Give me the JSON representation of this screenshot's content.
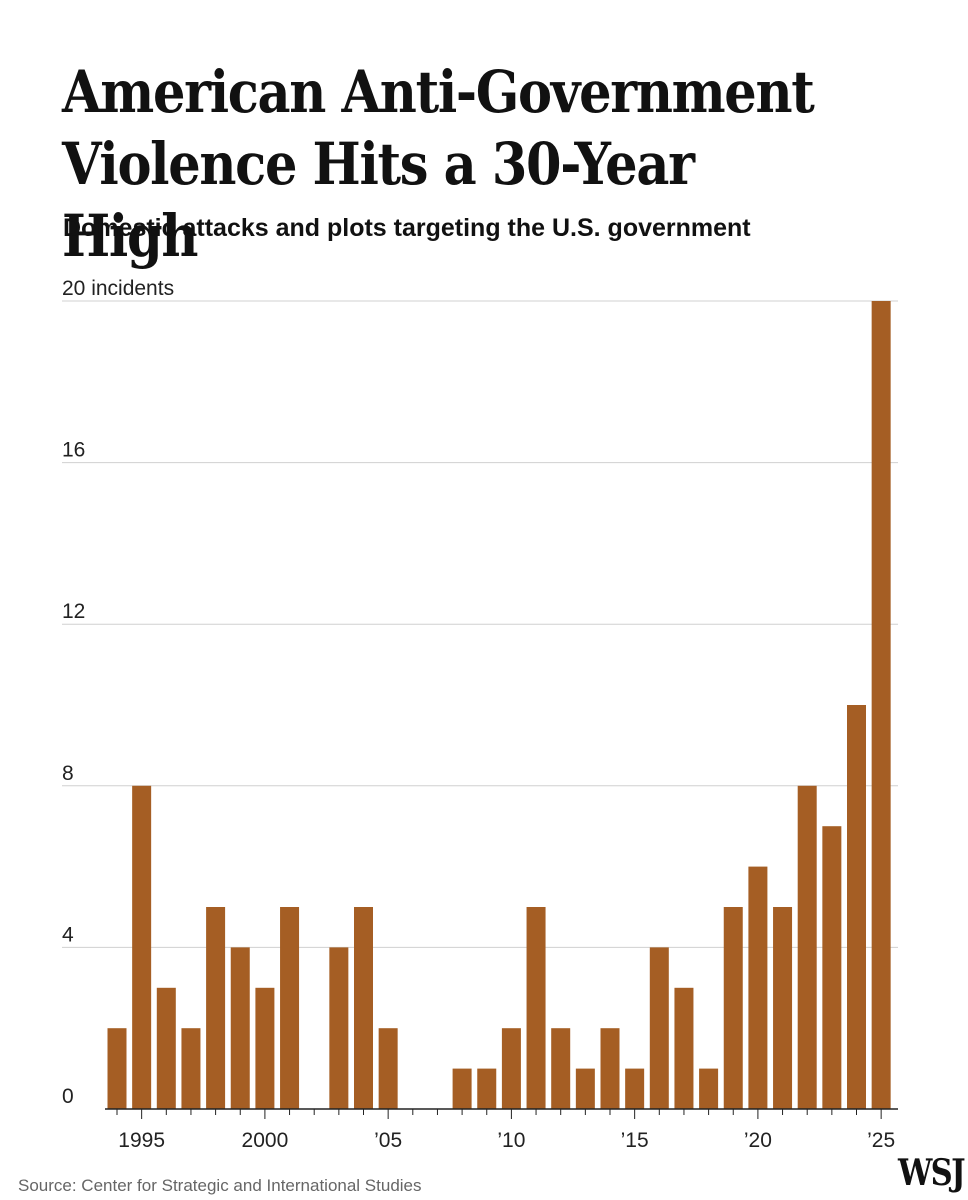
{
  "title": "American Anti-Government Violence Hits a 30-Year High",
  "subtitle": "Domestic attacks and plots targeting the U.S. government",
  "source": "Source: Center for Strategic and International Studies",
  "logo": "WSJ",
  "colors": {
    "bar": "#A55E24",
    "grid": "#d0d0d0",
    "axis": "#222222"
  },
  "chart_data": {
    "type": "bar",
    "title": "American Anti-Government Violence Hits a 30-Year High",
    "subtitle": "Domestic attacks and plots targeting the U.S. government",
    "ylabel": "",
    "xlabel": "",
    "ylim": [
      0,
      20
    ],
    "grid": true,
    "y_ticks": [
      {
        "value": 0,
        "label": "0"
      },
      {
        "value": 4,
        "label": "4"
      },
      {
        "value": 8,
        "label": "8"
      },
      {
        "value": 12,
        "label": "12"
      },
      {
        "value": 16,
        "label": "16"
      },
      {
        "value": 20,
        "label": "20 incidents"
      }
    ],
    "x_ticks": [
      {
        "year": 1995,
        "label": "1995"
      },
      {
        "year": 2000,
        "label": "2000"
      },
      {
        "year": 2005,
        "label": "’05"
      },
      {
        "year": 2010,
        "label": "’10"
      },
      {
        "year": 2015,
        "label": "’15"
      },
      {
        "year": 2020,
        "label": "’20"
      },
      {
        "year": 2025,
        "label": "’25"
      }
    ],
    "categories": [
      1994,
      1995,
      1996,
      1997,
      1998,
      1999,
      2000,
      2001,
      2002,
      2003,
      2004,
      2005,
      2006,
      2007,
      2008,
      2009,
      2010,
      2011,
      2012,
      2013,
      2014,
      2015,
      2016,
      2017,
      2018,
      2019,
      2020,
      2021,
      2022,
      2023,
      2024,
      2025
    ],
    "values": [
      2,
      8,
      3,
      2,
      5,
      4,
      3,
      5,
      0,
      4,
      5,
      2,
      0,
      0,
      1,
      1,
      2,
      5,
      2,
      1,
      2,
      1,
      4,
      3,
      1,
      5,
      6,
      5,
      8,
      7,
      10,
      20
    ]
  }
}
